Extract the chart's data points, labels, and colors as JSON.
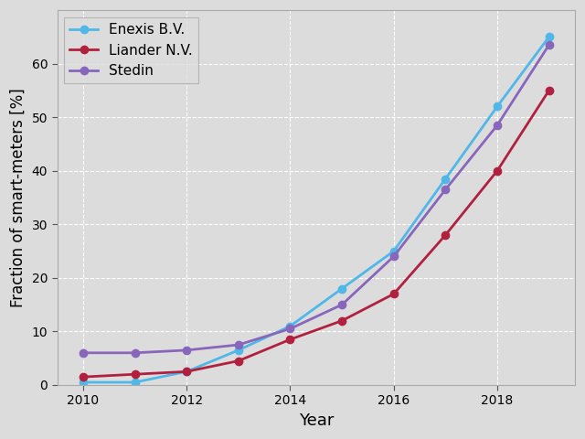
{
  "years": [
    2010,
    2011,
    2012,
    2013,
    2014,
    2015,
    2016,
    2017,
    2018,
    2019
  ],
  "enexis": [
    0.5,
    0.5,
    2.5,
    6.5,
    11.0,
    18.0,
    25.0,
    38.5,
    52.0,
    65.0
  ],
  "liander": [
    1.5,
    2.0,
    2.5,
    4.5,
    8.5,
    12.0,
    17.0,
    28.0,
    40.0,
    55.0
  ],
  "stedin": [
    6.0,
    6.0,
    6.5,
    7.5,
    10.5,
    15.0,
    24.0,
    36.5,
    48.5,
    63.5
  ],
  "enexis_color": "#4fb8e8",
  "liander_color": "#b22040",
  "stedin_color": "#8866bb",
  "enexis_label": "Enexis B.V.",
  "liander_label": "Liander N.V.",
  "stedin_label": "Stedin",
  "xlabel": "Year",
  "ylabel": "Fraction of smart-meters [%]",
  "ylim": [
    0,
    70
  ],
  "xlim": [
    2009.5,
    2019.5
  ],
  "background_color": "#dcdcdc",
  "fig_background_color": "#dcdcdc",
  "marker": "o",
  "linewidth": 2.0,
  "markersize": 6,
  "xticks": [
    2010,
    2012,
    2014,
    2016,
    2018
  ],
  "yticks": [
    0,
    10,
    20,
    30,
    40,
    50,
    60
  ]
}
